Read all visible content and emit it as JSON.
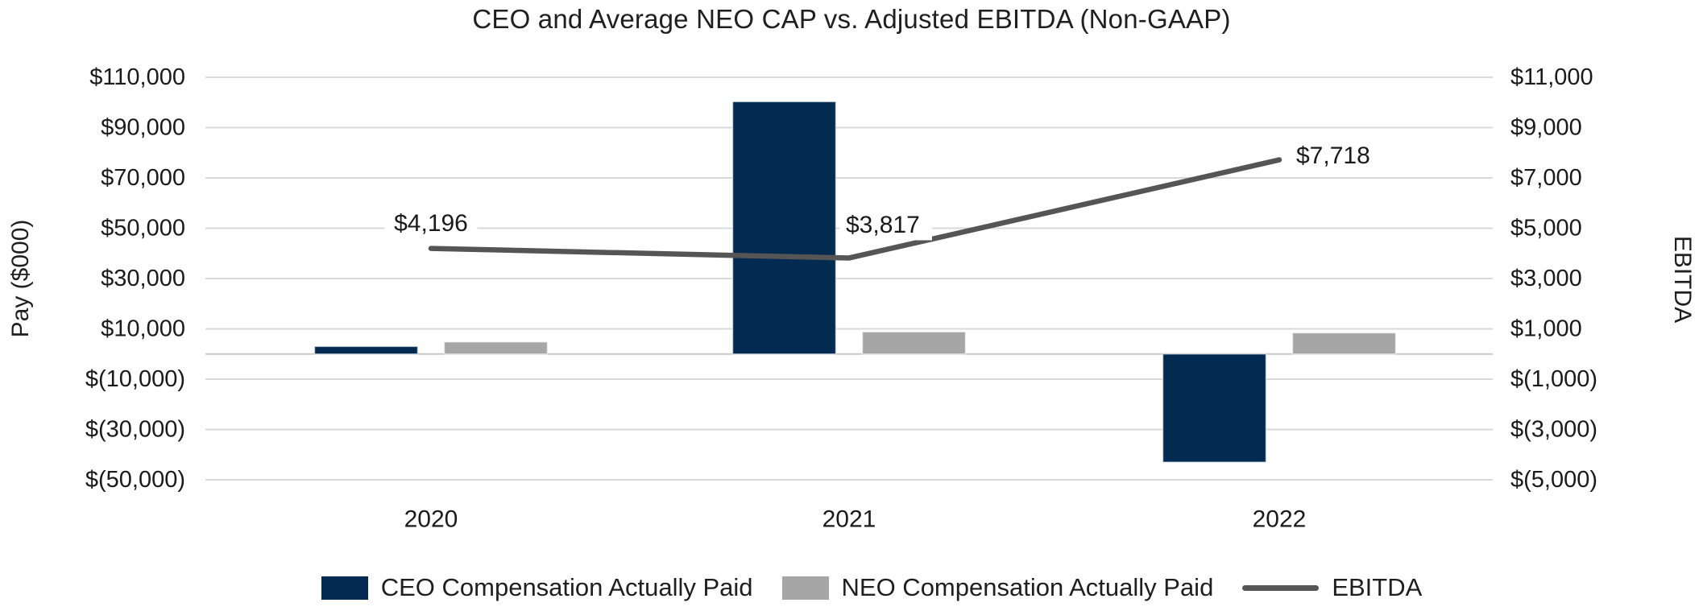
{
  "chart_data": {
    "type": "bar+line",
    "title": "CEO and Average NEO CAP vs. Adjusted EBITDA (Non-GAAP)",
    "categories": [
      "2020",
      "2021",
      "2022"
    ],
    "series": [
      {
        "name": "CEO Compensation Actually Paid",
        "type": "bar",
        "axis": "left",
        "color": "#032a51",
        "values": [
          3000,
          100300,
          -43000
        ]
      },
      {
        "name": "NEO Compensation Actually Paid",
        "type": "bar",
        "axis": "left",
        "color": "#a6a6a6",
        "values": [
          4800,
          8800,
          8400
        ]
      },
      {
        "name": "EBITDA",
        "type": "line",
        "axis": "right",
        "color": "#555555",
        "values": [
          4196,
          3817,
          7718
        ],
        "point_labels": [
          "$4,196",
          "$3,817",
          "$7,718"
        ]
      }
    ],
    "left_axis": {
      "title": "Pay ($000)",
      "ylim": [
        -50000,
        110000
      ],
      "tick_step": 20000,
      "tick_labels": [
        "$110,000",
        "$90,000",
        "$70,000",
        "$50,000",
        "$30,000",
        "$10,000",
        "$(10,000)",
        "$(30,000)",
        "$(50,000)"
      ],
      "tick_values": [
        110000,
        90000,
        70000,
        50000,
        30000,
        10000,
        -10000,
        -30000,
        -50000
      ]
    },
    "right_axis": {
      "title": "EBITDA",
      "ylim": [
        -5000,
        11000
      ],
      "tick_step": 2000,
      "tick_labels": [
        "$11,000",
        "$9,000",
        "$7,000",
        "$5,000",
        "$3,000",
        "$1,000",
        "$(1,000)",
        "$(3,000)",
        "$(5,000)"
      ],
      "tick_values": [
        11000,
        9000,
        7000,
        5000,
        3000,
        1000,
        -1000,
        -3000,
        -5000
      ]
    },
    "grid": true,
    "legend_position": "bottom",
    "colors": {
      "gridline": "#d9d9d9",
      "zero_line": "#c9c9c9",
      "text": "#1a1a1a"
    }
  }
}
